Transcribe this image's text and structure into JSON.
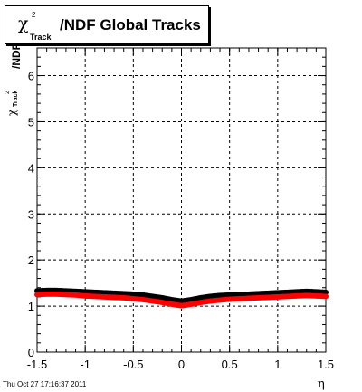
{
  "chart_data": {
    "type": "scatter",
    "title": "/NDF  Global Tracks",
    "title_chi": "χ",
    "title_sup": "2",
    "title_sub": "Track",
    "ylabel_chi": "χ",
    "ylabel_sup": "2",
    "ylabel_sub": "Track",
    "ylabel": "/NDF",
    "xlabel": "η",
    "xlim": [
      -1.5,
      1.5
    ],
    "ylim": [
      0,
      6.6
    ],
    "xticks": [
      -1.5,
      -1,
      -0.5,
      0,
      0.5,
      1,
      1.5
    ],
    "xtick_labels": [
      "-1.5",
      "-1",
      "-0.5",
      "0",
      "0.5",
      "1",
      "1.5"
    ],
    "yticks": [
      0,
      1,
      2,
      3,
      4,
      5,
      6
    ],
    "ytick_labels": [
      "0",
      "1",
      "2",
      "3",
      "4",
      "5",
      "6"
    ],
    "grid": true,
    "series": [
      {
        "color": "#000000",
        "x": [
          -1.5,
          -1.4,
          -1.3,
          -1.2,
          -1.1,
          -1.0,
          -0.9,
          -0.8,
          -0.7,
          -0.6,
          -0.5,
          -0.4,
          -0.3,
          -0.2,
          -0.1,
          0.0,
          0.1,
          0.2,
          0.3,
          0.4,
          0.5,
          0.6,
          0.7,
          0.8,
          0.9,
          1.0,
          1.1,
          1.2,
          1.3,
          1.4,
          1.5
        ],
        "y": [
          1.33,
          1.34,
          1.34,
          1.33,
          1.32,
          1.31,
          1.3,
          1.29,
          1.28,
          1.27,
          1.26,
          1.24,
          1.21,
          1.18,
          1.14,
          1.11,
          1.14,
          1.18,
          1.21,
          1.23,
          1.24,
          1.25,
          1.26,
          1.27,
          1.28,
          1.29,
          1.3,
          1.31,
          1.32,
          1.31,
          1.3
        ]
      },
      {
        "color": "#ff0000",
        "x": [
          -1.5,
          -1.4,
          -1.3,
          -1.2,
          -1.1,
          -1.0,
          -0.9,
          -0.8,
          -0.7,
          -0.6,
          -0.5,
          -0.4,
          -0.3,
          -0.2,
          -0.1,
          0.0,
          0.1,
          0.2,
          0.3,
          0.4,
          0.5,
          0.6,
          0.7,
          0.8,
          0.9,
          1.0,
          1.1,
          1.2,
          1.3,
          1.4,
          1.5
        ],
        "y": [
          1.25,
          1.26,
          1.26,
          1.25,
          1.24,
          1.22,
          1.21,
          1.2,
          1.19,
          1.18,
          1.16,
          1.14,
          1.11,
          1.08,
          1.04,
          1.01,
          1.04,
          1.08,
          1.11,
          1.13,
          1.15,
          1.16,
          1.17,
          1.18,
          1.19,
          1.2,
          1.21,
          1.22,
          1.23,
          1.22,
          1.21
        ]
      }
    ],
    "legend": ""
  },
  "footer": {
    "datestamp": "Thu Oct 27 17:16:37 2011"
  }
}
